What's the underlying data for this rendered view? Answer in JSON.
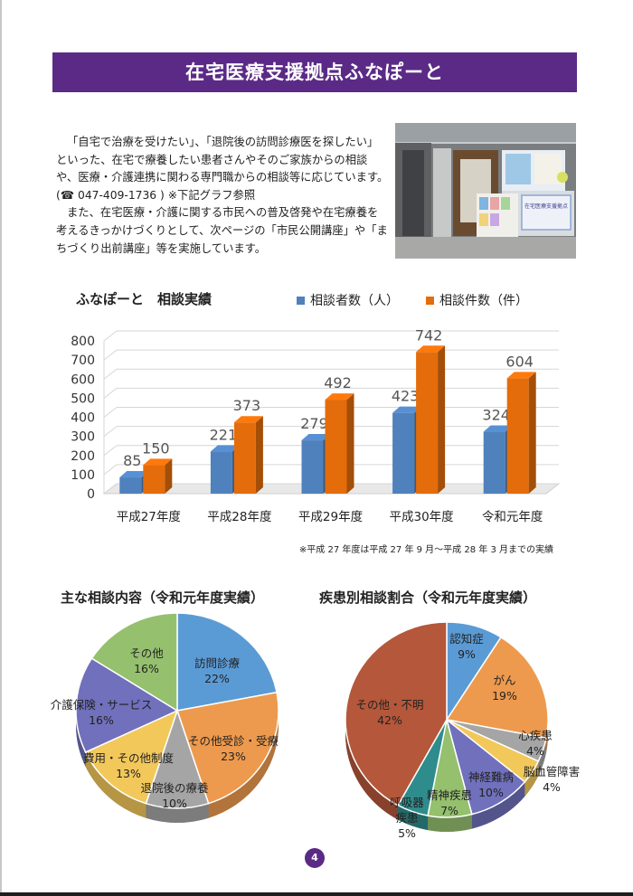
{
  "title": "在宅医療支援拠点ふなぽーと",
  "intro": {
    "p1": "「自宅で治療を受けたい」、「退院後の訪問診療医を探したい」といった、在宅で療養したい患者さんやそのご家族からの相談や、医療・介護連携に関わる専門職からの相談等に応じています。(☎ 047-409-1736 ) ※下記グラフ参照",
    "p2": "また、在宅医療・介護に関する市民への普及啓発や在宅療養を考えるきっかけづくりとして、次ページの「市民公開講座」や「まちづくり出前講座」等を実施しています。"
  },
  "photo": {
    "sign_text": "在宅医療支援拠点"
  },
  "bar_chart": {
    "title": "ふなぽーと　相談実績",
    "footnote": "※平成 27 年度は平成 27 年 9 月～平成 28 年 3 月までの実績"
  },
  "pie_left_title": "主な相談内容（令和元年度実績）",
  "pie_right_title": "疾患別相談割合（令和元年度実績）",
  "page_number": "4",
  "colors": {
    "banner": "#5b2a86",
    "blue": "#4f81bd",
    "orange": "#e46c0a",
    "accent_green": "#9bbb59"
  },
  "chart_data": [
    {
      "type": "bar",
      "title": "ふなぽーと　相談実績",
      "categories": [
        "平成27年度",
        "平成28年度",
        "平成29年度",
        "平成30年度",
        "令和元年度"
      ],
      "series": [
        {
          "name": "相談者数（人）",
          "values": [
            85,
            221,
            279,
            423,
            324
          ],
          "color": "#4f81bd"
        },
        {
          "name": "相談件数（件）",
          "values": [
            150,
            373,
            492,
            742,
            604
          ],
          "color": "#e46c0a"
        }
      ],
      "yticks": [
        "0",
        "100",
        "200",
        "300",
        "400",
        "500",
        "600",
        "700",
        "800"
      ],
      "ylim": [
        0,
        800
      ],
      "legend": "top"
    },
    {
      "type": "pie",
      "title": "主な相談内容（令和元年度実績）",
      "slices": [
        {
          "label": "訪問診療",
          "pct": "22%",
          "value": 22,
          "color": "#5b9bd5"
        },
        {
          "label": "その他受診・受療",
          "pct": "23%",
          "value": 23,
          "color": "#ed9a4e"
        },
        {
          "label": "退院後の療養",
          "pct": "10%",
          "value": 10,
          "color": "#a5a5a5"
        },
        {
          "label": "費用・その他制度",
          "pct": "13%",
          "value": 13,
          "color": "#f2c85b"
        },
        {
          "label": "介護保険・サービス",
          "pct": "16%",
          "value": 16,
          "color": "#7070bc"
        },
        {
          "label": "その他",
          "pct": "16%",
          "value": 16,
          "color": "#95c06e"
        }
      ]
    },
    {
      "type": "pie",
      "title": "疾患別相談割合（令和元年度実績）",
      "slices": [
        {
          "label": "認知症",
          "pct": "9%",
          "value": 9,
          "color": "#5b9bd5"
        },
        {
          "label": "がん",
          "pct": "19%",
          "value": 19,
          "color": "#ed9a4e"
        },
        {
          "label": "心疾患",
          "pct": "4%",
          "value": 4,
          "color": "#a5a5a5"
        },
        {
          "label": "脳血管障害",
          "pct": "4%",
          "value": 4,
          "color": "#f2c85b"
        },
        {
          "label": "神経難病",
          "pct": "10%",
          "value": 10,
          "color": "#7070bc"
        },
        {
          "label": "精神疾患",
          "pct": "7%",
          "value": 7,
          "color": "#95c06e"
        },
        {
          "label": "呼吸器疾患",
          "pct": "5%",
          "value": 5,
          "color": "#2e8c8c"
        },
        {
          "label": "その他・不明",
          "pct": "42%",
          "value": 42,
          "color": "#b5573a"
        }
      ]
    }
  ]
}
